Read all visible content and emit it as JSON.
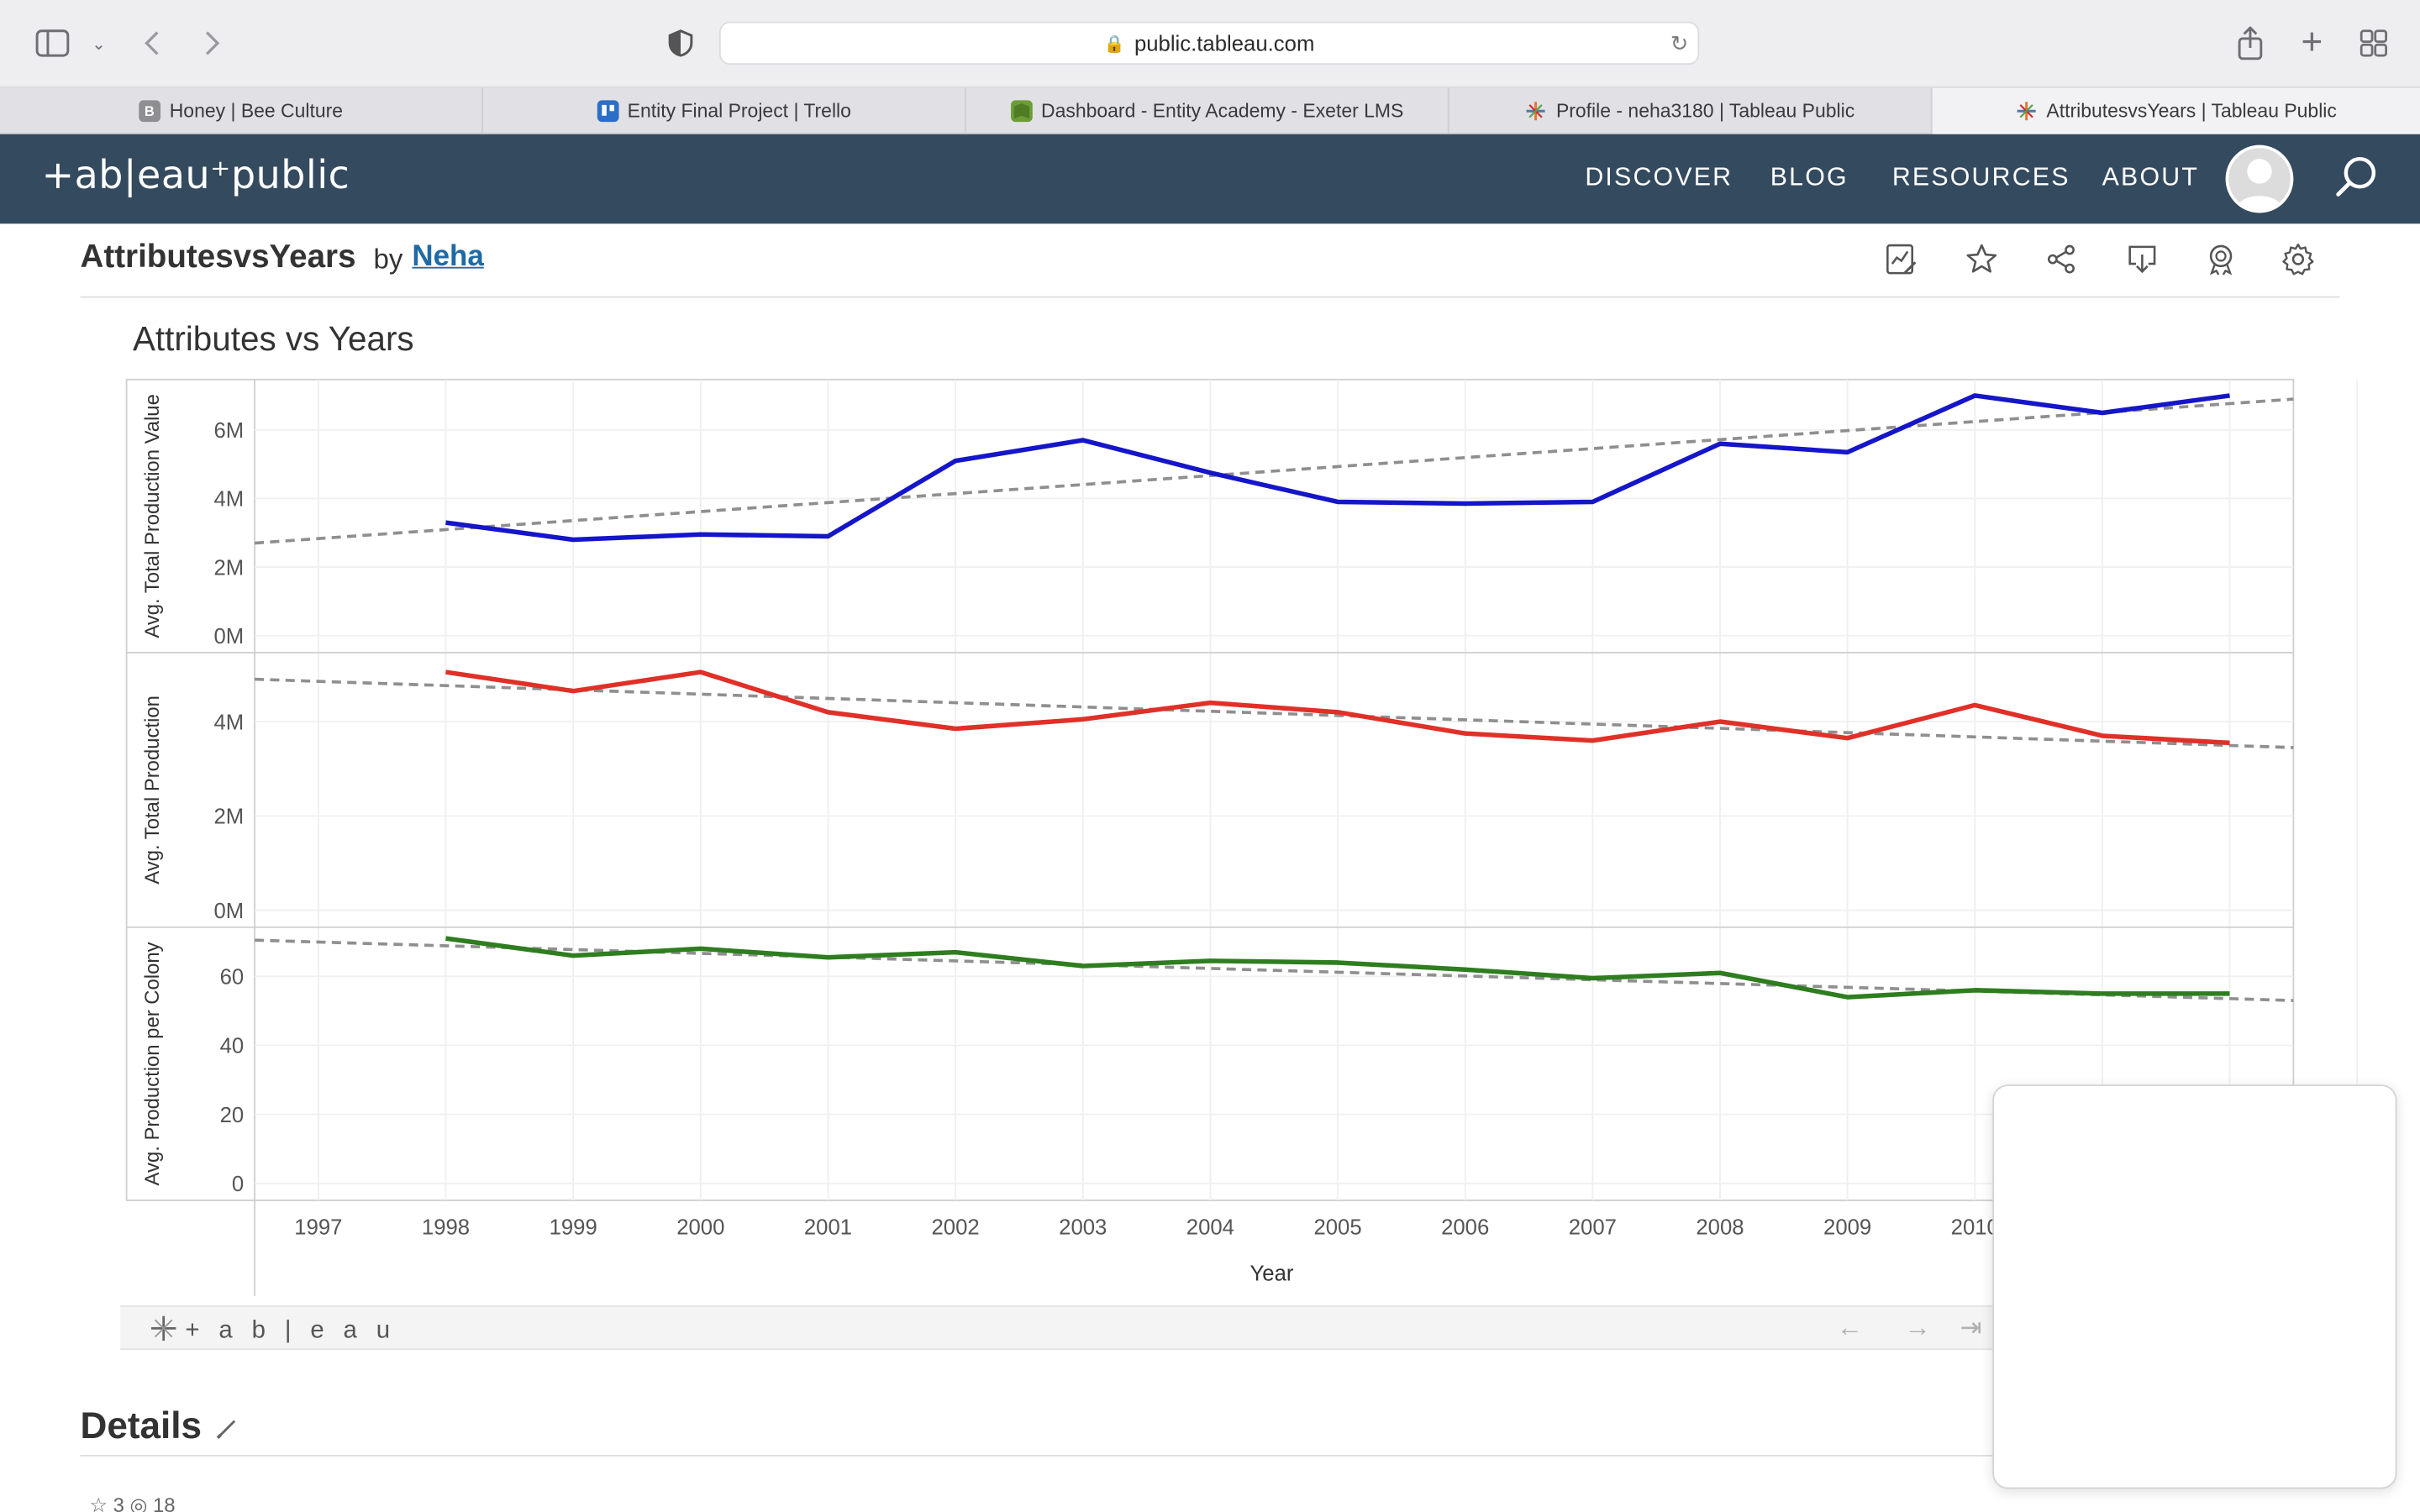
{
  "browser": {
    "url": "public.tableau.com",
    "tabs": [
      {
        "label": "Honey | Bee Culture",
        "favicon": "B",
        "favicon_color": "#8e8e93"
      },
      {
        "label": "Entity Final Project | Trello",
        "favicon": "T",
        "favicon_color": "#2b6fc7"
      },
      {
        "label": "Dashboard - Entity Academy - Exeter LMS",
        "favicon": "E",
        "favicon_color": "#6b9d37"
      },
      {
        "label": "Profile - neha3180 | Tableau Public",
        "favicon": "tableau-icon",
        "favicon_color": "#e8762c"
      },
      {
        "label": "AttributesvsYears | Tableau Public",
        "favicon": "tableau-icon",
        "favicon_color": "#e8762c",
        "active": true
      }
    ]
  },
  "header": {
    "logo": "+ab|eau⁺public",
    "nav": [
      "DISCOVER",
      "BLOG",
      "RESOURCES",
      "ABOUT"
    ],
    "bg_color": "#344a5f"
  },
  "viz": {
    "title": "AttributesvsYears",
    "by": "by",
    "author": "Neha"
  },
  "chart_title": "Attributes vs Years",
  "chart_data": {
    "type": "line",
    "x_label": "Year",
    "x_ticks": [
      "1997",
      "1998",
      "1999",
      "2000",
      "2001",
      "2002",
      "2003",
      "2004",
      "2005",
      "2006",
      "2007",
      "2008",
      "2009",
      "2010"
    ],
    "x_range": [
      1997,
      2013
    ],
    "panels": [
      {
        "ylabel": "Avg. Total Production Value",
        "color": "#1515c9",
        "yticks": [
          {
            "v": 0,
            "label": "0M"
          },
          {
            "v": 2,
            "label": "2M"
          },
          {
            "v": 4,
            "label": "4M"
          },
          {
            "v": 6,
            "label": "6M"
          }
        ],
        "yrange": [
          0,
          7.2
        ],
        "x": [
          1998,
          1999,
          2000,
          2001,
          2002,
          2003,
          2004,
          2005,
          2006,
          2007,
          2008,
          2009,
          2010,
          2011,
          2012
        ],
        "values": [
          3.3,
          2.8,
          2.95,
          2.9,
          5.1,
          5.7,
          4.75,
          3.9,
          3.85,
          3.9,
          5.6,
          5.35,
          7.0,
          6.5,
          7.0
        ],
        "trend": [
          2.7,
          6.9
        ]
      },
      {
        "ylabel": "Avg. Total Production",
        "color": "#e03028",
        "yticks": [
          {
            "v": 0,
            "label": "0M"
          },
          {
            "v": 2,
            "label": "2M"
          },
          {
            "v": 4,
            "label": "4M"
          }
        ],
        "yrange": [
          0,
          5.3
        ],
        "x": [
          1998,
          1999,
          2000,
          2001,
          2002,
          2003,
          2004,
          2005,
          2006,
          2007,
          2008,
          2009,
          2010,
          2011,
          2012
        ],
        "values": [
          5.05,
          4.65,
          5.05,
          4.2,
          3.85,
          4.05,
          4.4,
          4.2,
          3.75,
          3.6,
          4.0,
          3.65,
          4.35,
          3.7,
          3.55
        ],
        "trend": [
          4.9,
          3.45
        ]
      },
      {
        "ylabel": "Avg. Production per Colony",
        "color": "#2e7d1f",
        "yticks": [
          {
            "v": 0,
            "label": "0"
          },
          {
            "v": 20,
            "label": "20"
          },
          {
            "v": 40,
            "label": "40"
          },
          {
            "v": 60,
            "label": "60"
          }
        ],
        "yrange": [
          0,
          72
        ],
        "x": [
          1998,
          1999,
          2000,
          2001,
          2002,
          2003,
          2004,
          2005,
          2006,
          2007,
          2008,
          2009,
          2010,
          2011,
          2012
        ],
        "values": [
          71,
          66,
          68,
          65.5,
          67,
          63,
          64.5,
          64,
          62,
          59.5,
          61,
          54,
          56,
          55,
          55
        ],
        "trend": [
          70.5,
          53
        ]
      }
    ]
  },
  "tableau_toolbar": {
    "brand": "+ a b | e a u"
  },
  "details": {
    "title": "Details",
    "stats": "☆ 3   ◎ 18"
  }
}
